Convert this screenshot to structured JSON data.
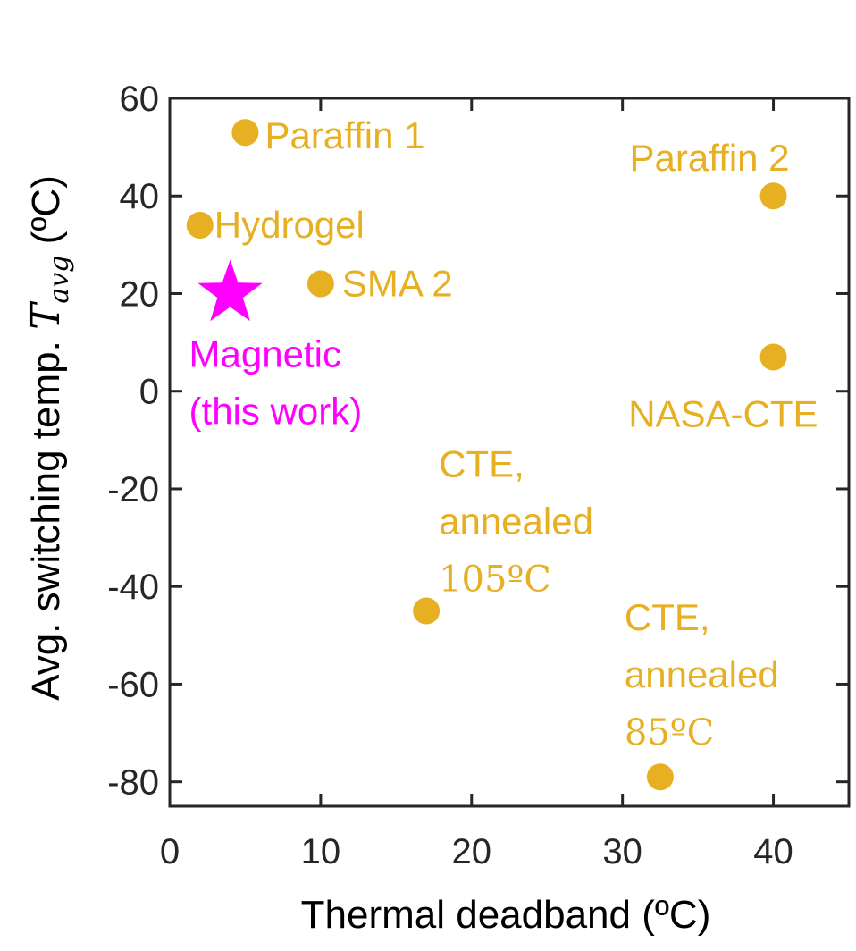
{
  "chart_data": {
    "type": "scatter",
    "xlabel": "Thermal deadband (ºC)",
    "ylabel_prefix": "Avg. switching temp. ",
    "ylabel_symbol": "T",
    "ylabel_subscript": "avg",
    "ylabel_unit": " (ºC)",
    "xlim": [
      0,
      45
    ],
    "ylim": [
      -85,
      60
    ],
    "xticks": [
      0,
      10,
      20,
      30,
      40
    ],
    "yticks": [
      -80,
      -60,
      -40,
      -20,
      0,
      20,
      40,
      60
    ],
    "grid": false,
    "series_color": "#e6b022",
    "highlight_color": "#ff00ff",
    "points": [
      {
        "name": "paraffin-1",
        "x": 5,
        "y": 53,
        "marker": "circle",
        "lines": [
          "Paraffin 1"
        ]
      },
      {
        "name": "paraffin-2",
        "x": 40,
        "y": 40,
        "marker": "circle",
        "lines": [
          "Paraffin 2"
        ]
      },
      {
        "name": "hydrogel",
        "x": 2,
        "y": 34,
        "marker": "circle",
        "lines": [
          "Hydrogel"
        ]
      },
      {
        "name": "sma-2",
        "x": 10,
        "y": 22,
        "marker": "circle",
        "lines": [
          "SMA 2"
        ]
      },
      {
        "name": "magnetic",
        "x": 4,
        "y": 20,
        "marker": "star",
        "lines": [
          "Magnetic",
          "(this work)"
        ]
      },
      {
        "name": "nasa-cte",
        "x": 40,
        "y": 7,
        "marker": "circle",
        "lines": [
          "NASA-CTE"
        ]
      },
      {
        "name": "cte-105",
        "x": 17,
        "y": -45,
        "marker": "circle",
        "lines": [
          "CTE,",
          "annealed",
          "105ºC"
        ]
      },
      {
        "name": "cte-85",
        "x": 32.5,
        "y": -79,
        "marker": "circle",
        "lines": [
          "CTE,",
          "annealed",
          "85ºC"
        ]
      }
    ]
  }
}
